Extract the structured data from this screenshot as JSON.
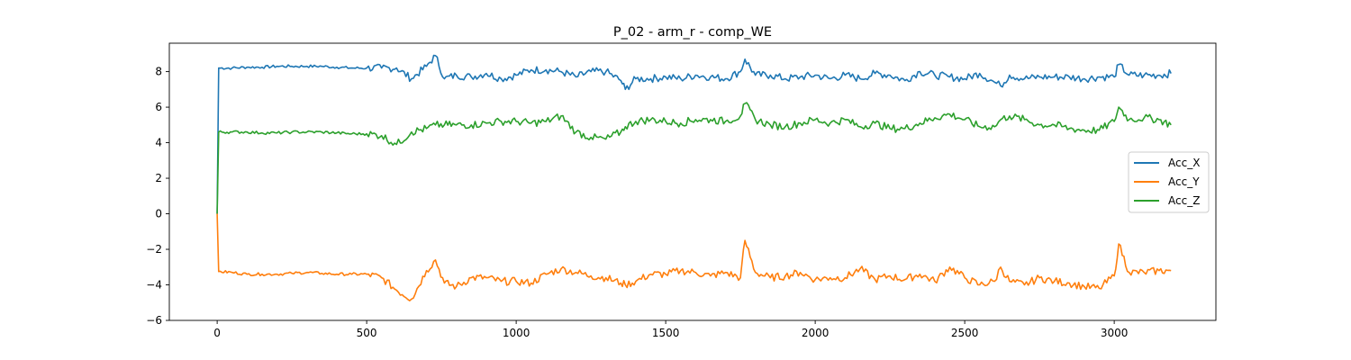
{
  "chart_data": {
    "type": "line",
    "title": "P_02 - arm_r - comp_WE",
    "xlabel": "",
    "ylabel": "",
    "xlim": [
      -160,
      3340
    ],
    "ylim": [
      -6,
      9.6
    ],
    "xticks": [
      0,
      500,
      1000,
      1500,
      2000,
      2500,
      3000
    ],
    "yticks": [
      -6,
      -4,
      -2,
      0,
      2,
      4,
      6,
      8
    ],
    "grid": false,
    "legend_position": "center-right",
    "x": [
      0,
      5,
      50,
      100,
      150,
      200,
      250,
      300,
      350,
      400,
      450,
      500,
      550,
      600,
      650,
      700,
      730,
      760,
      800,
      850,
      900,
      950,
      1000,
      1050,
      1100,
      1150,
      1200,
      1250,
      1300,
      1350,
      1365,
      1400,
      1450,
      1500,
      1550,
      1600,
      1650,
      1700,
      1750,
      1765,
      1800,
      1850,
      1900,
      1950,
      2000,
      2050,
      2100,
      2150,
      2200,
      2250,
      2300,
      2350,
      2400,
      2450,
      2500,
      2550,
      2600,
      2620,
      2650,
      2700,
      2750,
      2800,
      2850,
      2900,
      2950,
      3000,
      3015,
      3050,
      3100,
      3150,
      3190
    ],
    "series": [
      {
        "name": "Acc_X",
        "color": "#1f77b4",
        "values": [
          0,
          8.2,
          8.2,
          8.25,
          8.25,
          8.3,
          8.3,
          8.3,
          8.3,
          8.25,
          8.2,
          8.2,
          8.2,
          8.2,
          7.6,
          8.3,
          8.9,
          7.6,
          7.8,
          7.7,
          7.9,
          7.6,
          7.8,
          8.1,
          8.1,
          8.0,
          7.7,
          8.0,
          8.0,
          7.5,
          7.0,
          7.6,
          7.6,
          7.7,
          7.6,
          7.8,
          7.7,
          7.6,
          8.0,
          8.7,
          7.8,
          7.8,
          7.6,
          7.7,
          7.8,
          7.6,
          7.8,
          7.6,
          7.9,
          7.8,
          7.5,
          8.0,
          7.8,
          7.7,
          7.6,
          7.9,
          7.4,
          7.2,
          7.8,
          7.6,
          7.7,
          7.7,
          7.7,
          7.6,
          7.7,
          7.7,
          8.4,
          7.8,
          7.8,
          7.8,
          7.9
        ]
      },
      {
        "name": "Acc_Y",
        "color": "#ff7f0e",
        "values": [
          0,
          -3.25,
          -3.3,
          -3.4,
          -3.4,
          -3.4,
          -3.35,
          -3.3,
          -3.35,
          -3.4,
          -3.4,
          -3.4,
          -3.6,
          -4.3,
          -4.8,
          -3.2,
          -2.6,
          -3.9,
          -4.1,
          -3.6,
          -3.6,
          -3.8,
          -3.8,
          -3.9,
          -3.4,
          -3.1,
          -3.3,
          -3.5,
          -3.6,
          -3.9,
          -4.0,
          -3.8,
          -3.4,
          -3.4,
          -3.2,
          -3.3,
          -3.5,
          -3.3,
          -3.6,
          -1.5,
          -3.3,
          -3.6,
          -3.5,
          -3.3,
          -3.7,
          -3.6,
          -3.6,
          -3.1,
          -3.7,
          -3.5,
          -3.7,
          -3.4,
          -3.8,
          -3.0,
          -3.6,
          -4.0,
          -3.8,
          -3.0,
          -3.8,
          -4.0,
          -3.6,
          -3.8,
          -3.9,
          -4.1,
          -4.2,
          -3.5,
          -1.7,
          -3.3,
          -3.3,
          -3.2,
          -3.2
        ]
      },
      {
        "name": "Acc_Z",
        "color": "#2ca02c",
        "values": [
          0,
          4.6,
          4.6,
          4.6,
          4.55,
          4.55,
          4.6,
          4.6,
          4.6,
          4.55,
          4.5,
          4.5,
          4.4,
          3.9,
          4.6,
          4.8,
          5.0,
          5.0,
          5.0,
          5.0,
          5.1,
          5.2,
          5.2,
          5.1,
          5.2,
          5.5,
          4.6,
          4.3,
          4.2,
          4.6,
          4.9,
          5.2,
          5.3,
          5.2,
          5.1,
          5.3,
          5.3,
          5.2,
          5.5,
          6.2,
          5.3,
          5.0,
          4.9,
          5.1,
          5.3,
          5.1,
          5.3,
          4.9,
          5.1,
          4.8,
          4.8,
          5.1,
          5.4,
          5.6,
          5.3,
          4.9,
          4.9,
          5.3,
          5.5,
          5.3,
          5.0,
          5.0,
          4.8,
          4.7,
          4.7,
          5.2,
          6.0,
          5.3,
          5.4,
          5.3,
          5.0
        ]
      }
    ]
  }
}
